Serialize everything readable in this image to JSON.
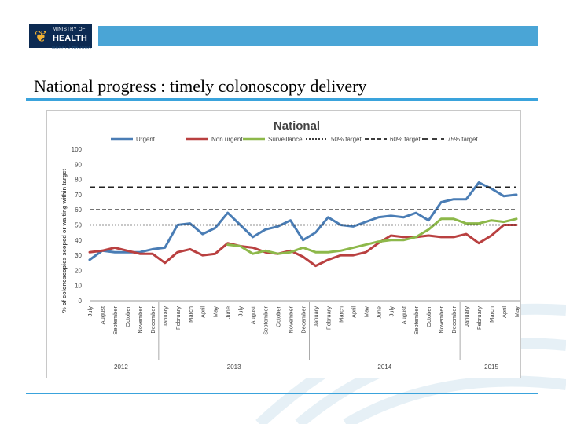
{
  "header": {
    "logo_line1": "MINISTRY OF",
    "logo_line2": "HEALTH",
    "logo_sub": "MANATŪ HAUORA"
  },
  "slide": {
    "title": "National progress : timely colonoscopy delivery"
  },
  "colors": {
    "urgent": "#4a7db5",
    "non_urgent": "#b94040",
    "surveillance": "#8db84a",
    "target": "#222222",
    "accent": "#3aa3dc"
  },
  "chart_data": {
    "type": "line",
    "title": "National",
    "ylabel": "% of colonoscopies scoped or waiting within target",
    "xlabel": "",
    "ylim": [
      0,
      100
    ],
    "yticks": [
      "0",
      "10",
      "20",
      "30",
      "40",
      "50",
      "60",
      "70",
      "80",
      "90",
      "100"
    ],
    "categories": [
      "July",
      "August",
      "September",
      "October",
      "November",
      "December",
      "January",
      "February",
      "March",
      "April",
      "May",
      "June",
      "July",
      "August",
      "September",
      "October",
      "November",
      "December",
      "January",
      "February",
      "March",
      "April",
      "May",
      "June",
      "July",
      "August",
      "September",
      "October",
      "November",
      "December",
      "January",
      "February",
      "March",
      "April",
      "May"
    ],
    "years": [
      {
        "label": "2012",
        "start": 0,
        "end": 5
      },
      {
        "label": "2013",
        "start": 6,
        "end": 17
      },
      {
        "label": "2014",
        "start": 18,
        "end": 29
      },
      {
        "label": "2015",
        "start": 30,
        "end": 34
      }
    ],
    "series": [
      {
        "name": "Urgent",
        "style": "solid",
        "color": "#4a7db5",
        "values": [
          27,
          33,
          32,
          32,
          32,
          34,
          35,
          50,
          51,
          44,
          48,
          58,
          50,
          42,
          47,
          49,
          53,
          40,
          45,
          55,
          50,
          49,
          52,
          55,
          56,
          55,
          58,
          53,
          65,
          67,
          67,
          78,
          74,
          69,
          70
        ]
      },
      {
        "name": "Non urgent",
        "style": "solid",
        "color": "#b94040",
        "values": [
          32,
          33,
          35,
          33,
          31,
          31,
          25,
          32,
          34,
          30,
          31,
          38,
          36,
          35,
          32,
          31,
          33,
          29,
          23,
          27,
          30,
          30,
          32,
          38,
          43,
          42,
          42,
          43,
          42,
          42,
          44,
          38,
          43,
          50,
          50
        ]
      },
      {
        "name": "Surveillance",
        "style": "solid",
        "color": "#8db84a",
        "values": [
          null,
          null,
          null,
          null,
          null,
          null,
          null,
          null,
          null,
          null,
          null,
          37,
          36,
          31,
          33,
          31,
          32,
          35,
          32,
          32,
          33,
          35,
          37,
          39,
          40,
          40,
          42,
          47,
          54,
          54,
          51,
          51,
          53,
          52,
          54
        ]
      },
      {
        "name": "50% target",
        "style": "dotted",
        "color": "#222222",
        "constant": 50
      },
      {
        "name": "60% target",
        "style": "dashed",
        "color": "#222222",
        "constant": 60
      },
      {
        "name": "75% target",
        "style": "dashed-long",
        "color": "#222222",
        "constant": 75
      }
    ],
    "legend_position": "top"
  }
}
